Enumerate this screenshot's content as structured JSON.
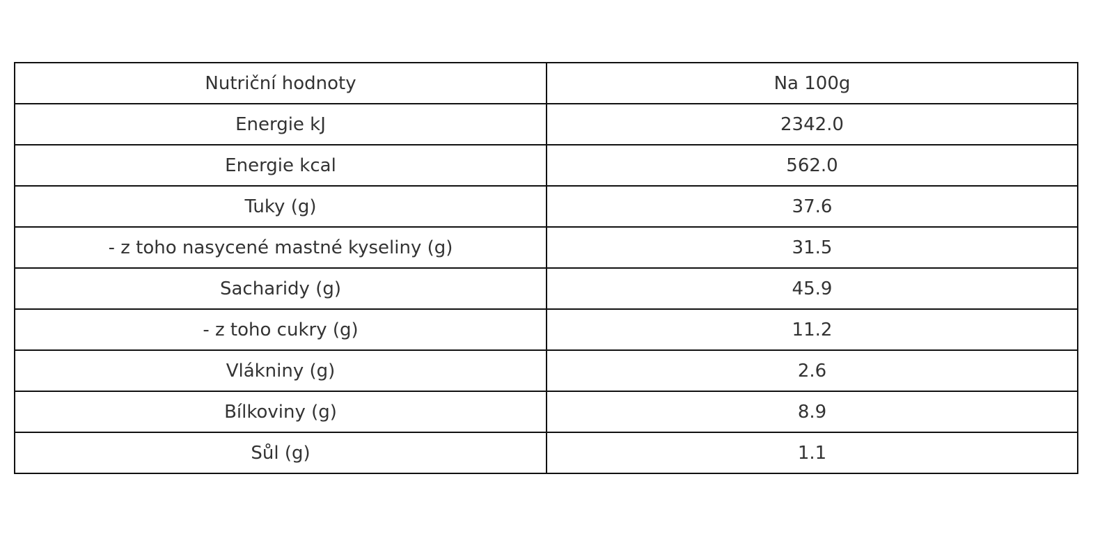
{
  "table": {
    "header": [
      "Nutriční hodnoty",
      "Na 100g"
    ],
    "rows": [
      [
        "Energie kJ",
        "2342.0"
      ],
      [
        "Energie kcal",
        "562.0"
      ],
      [
        "Tuky (g)",
        "37.6"
      ],
      [
        "- z toho nasycené mastné kyseliny (g)",
        "31.5"
      ],
      [
        "Sacharidy (g)",
        "45.9"
      ],
      [
        "- z toho cukry (g)",
        "11.2"
      ],
      [
        "Vlákniny (g)",
        "2.6"
      ],
      [
        "Bílkoviny (g)",
        "8.9"
      ],
      [
        "Sůl (g)",
        "1.1"
      ]
    ]
  }
}
